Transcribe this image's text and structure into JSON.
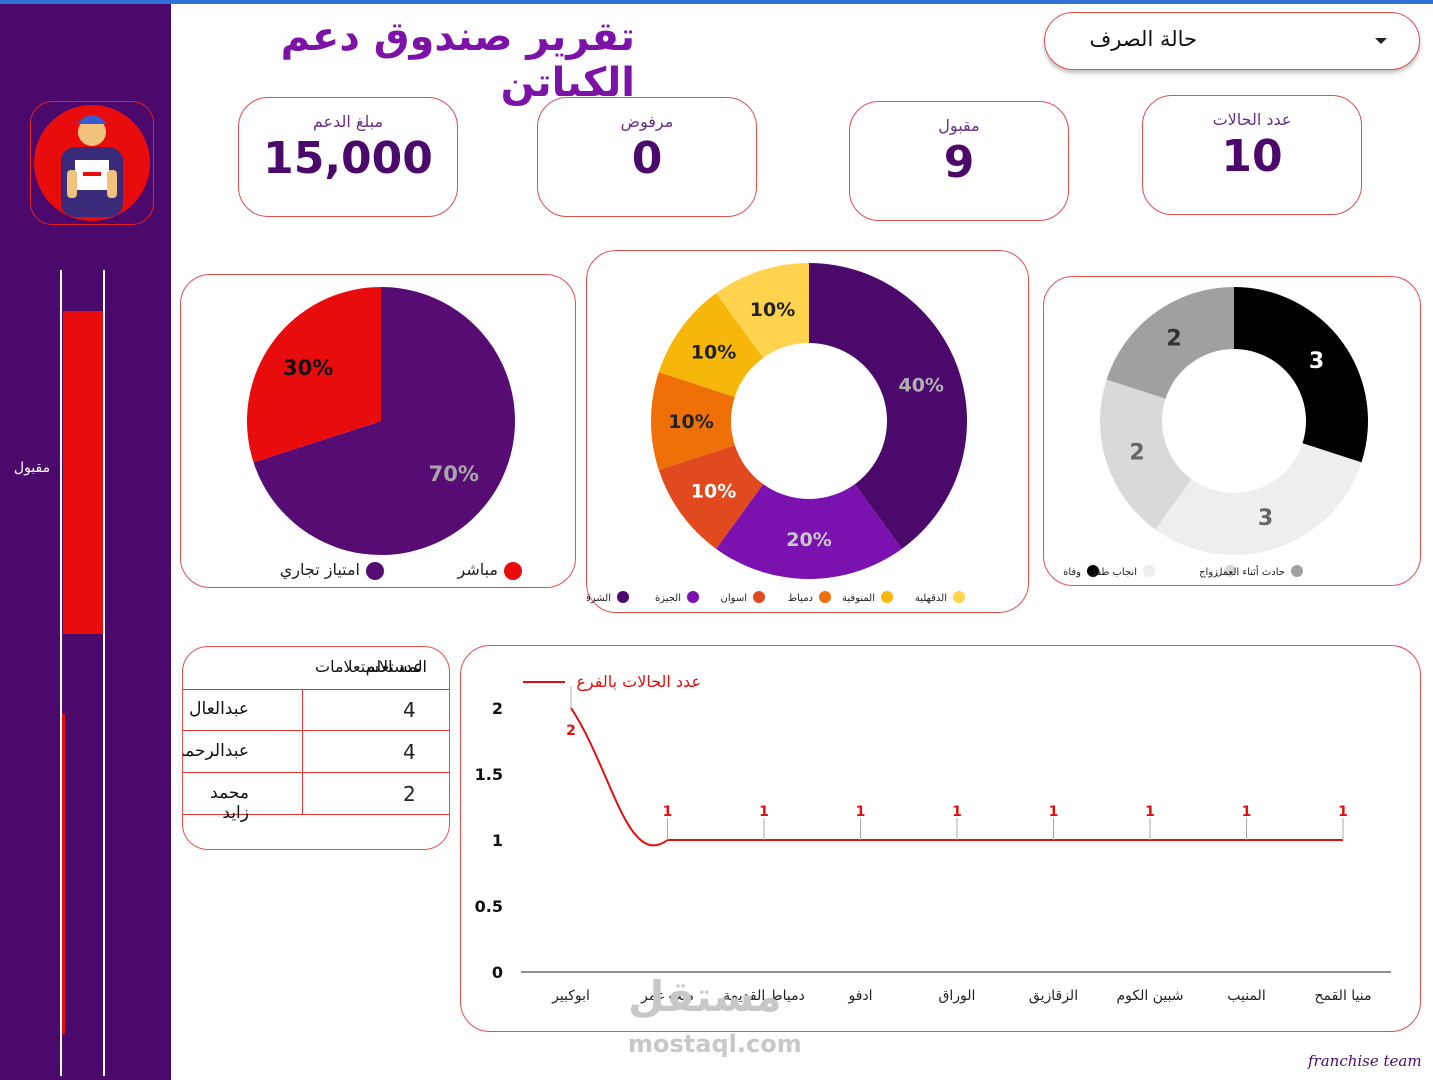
{
  "header": {
    "title": "تقرير صندوق دعم الكباتن"
  },
  "filter": {
    "label": "حالة الصرف"
  },
  "sidebar": {
    "status_label": "مقبول"
  },
  "kpis": [
    {
      "label": "مبلغ الدعم",
      "value": "15,000"
    },
    {
      "label": "مرفوض",
      "value": "0"
    },
    {
      "label": "مقبول",
      "value": "9"
    },
    {
      "label": "عدد الحالات",
      "value": "10"
    }
  ],
  "table": {
    "headers": [
      "المستعلم",
      "عدد الاستعلامات"
    ],
    "rows": [
      {
        "name": "عبدالعال",
        "count": "4"
      },
      {
        "name": "عبدالرحمن",
        "count": "4"
      },
      {
        "name": "محمد زايد",
        "count": "2"
      }
    ]
  },
  "watermark": {
    "brand": "مستقل",
    "url": "mostaql.com"
  },
  "signature": "franchise team",
  "chart_data": [
    {
      "type": "pie",
      "categories": [
        "امتياز تجاري",
        "مباشر"
      ],
      "values": [
        70,
        30
      ],
      "labels": [
        "70%",
        "30%"
      ],
      "colors": [
        "#560c72",
        "#e80c0c"
      ],
      "legend": "bottom"
    },
    {
      "type": "pie",
      "donut": true,
      "categories": [
        "الشرقية",
        "الجيزة",
        "اسوان",
        "دمياط",
        "المنوفية",
        "الدقهلية"
      ],
      "values": [
        40,
        20,
        10,
        10,
        10,
        10
      ],
      "labels": [
        "40%",
        "20%",
        "10%",
        "10%",
        "10%",
        "10%"
      ],
      "colors": [
        "#4b0a6b",
        "#7b12b0",
        "#e04a1e",
        "#f07008",
        "#f7b70a",
        "#ffd34e"
      ],
      "legend": "bottom"
    },
    {
      "type": "pie",
      "donut": true,
      "categories": [
        "وفاة",
        "انجاب طفل",
        "زواج",
        "حادث أثناء العمل"
      ],
      "values": [
        3,
        3,
        2,
        2
      ],
      "labels": [
        "3",
        "3",
        "2",
        "2"
      ],
      "colors": [
        "#000000",
        "#eeeeee",
        "#d9d9d9",
        "#a0a0a0"
      ],
      "legend": "bottom"
    },
    {
      "type": "line",
      "series": [
        {
          "name": "عدد الحالات بالفرع",
          "values": [
            2,
            1,
            1,
            1,
            1,
            1,
            1,
            1,
            1
          ]
        }
      ],
      "categories": [
        "ابوكبير",
        "ميت غمر",
        "دمياط القديمة",
        "ادفو",
        "الوراق",
        "الزقازيق",
        "شبين الكوم",
        "المنيب",
        "منيا القمح"
      ],
      "yticks": [
        "0",
        "0.5",
        "1",
        "1.5",
        "2"
      ],
      "ylim": [
        0,
        2
      ],
      "color": "#e00f0f",
      "legend": "top-left"
    }
  ]
}
